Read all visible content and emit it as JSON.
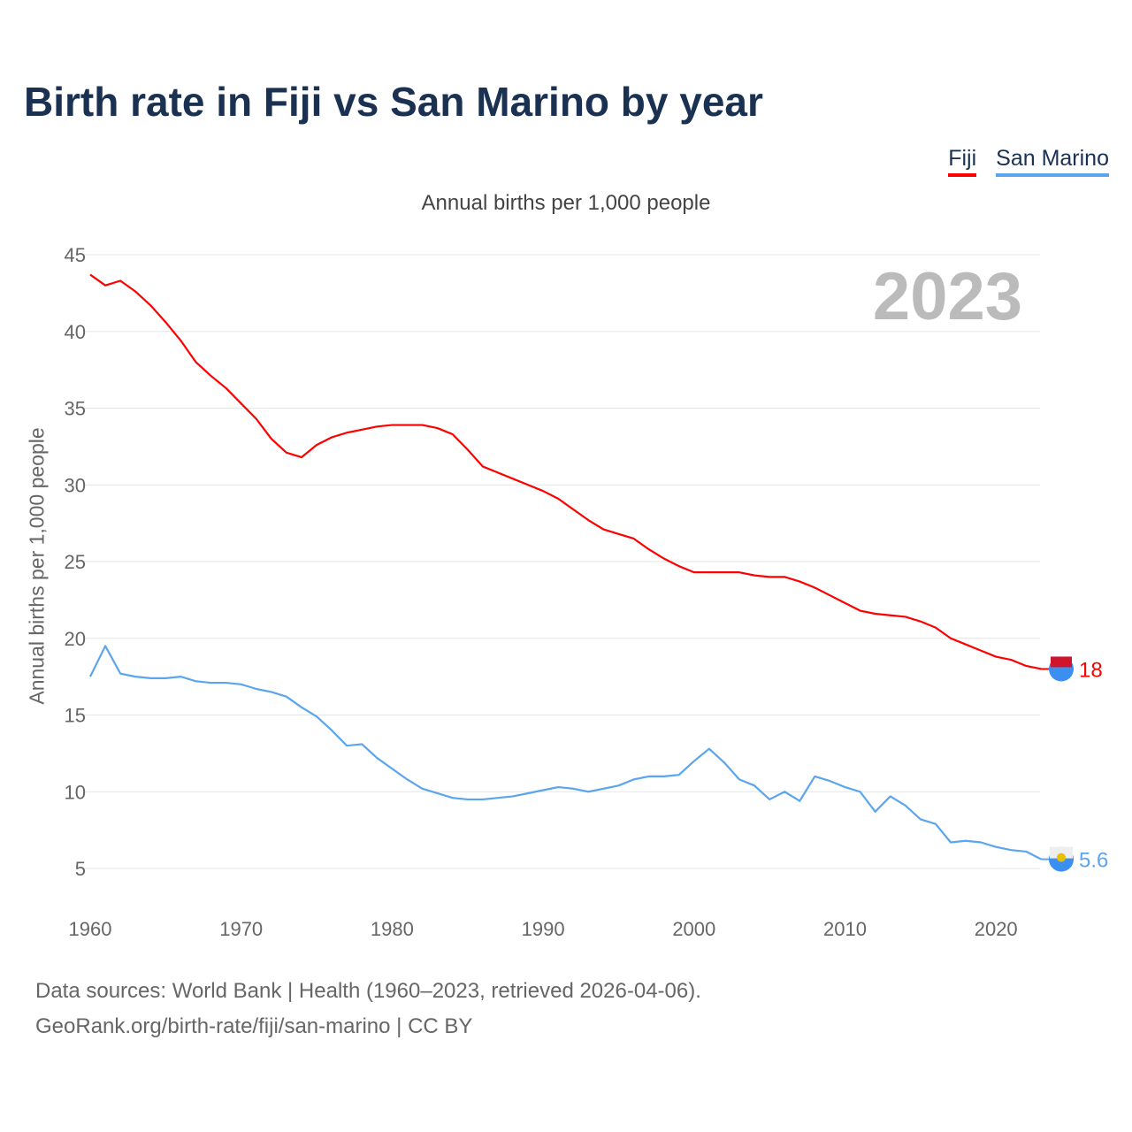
{
  "title": "Birth rate in Fiji vs San Marino by year",
  "footer": {
    "line1": "Data sources: World Bank | Health (1960–2023, retrieved 2026-04-06).",
    "line2": "GeoRank.org/birth-rate/fiji/san-marino | CC BY"
  },
  "chart_data": {
    "type": "line",
    "title": "Birth rate in Fiji vs San Marino by year",
    "subtitle": "Annual births per 1,000 people",
    "ylabel": "Annual births per 1,000 people",
    "xlabel": "",
    "current_year_label": "2023",
    "ylim": [
      2,
      45
    ],
    "xlim": [
      1960,
      2023
    ],
    "yticks": [
      5,
      10,
      15,
      20,
      25,
      30,
      35,
      40,
      45
    ],
    "xticks": [
      1960,
      1970,
      1980,
      1990,
      2000,
      2010,
      2020
    ],
    "grid": true,
    "legend_placement": "top-right",
    "x_start": 1960,
    "series": [
      {
        "name": "Fiji",
        "color": "#ff0000",
        "end_label": "18",
        "icon": "fiji-flag-icon",
        "values": [
          43.7,
          43.0,
          43.3,
          42.6,
          41.7,
          40.6,
          39.4,
          38.0,
          37.1,
          36.3,
          35.3,
          34.3,
          33.0,
          32.1,
          31.8,
          32.6,
          33.1,
          33.4,
          33.6,
          33.8,
          33.9,
          33.9,
          33.9,
          33.7,
          33.3,
          32.3,
          31.2,
          30.8,
          30.4,
          30.0,
          29.6,
          29.1,
          28.4,
          27.7,
          27.1,
          26.8,
          26.5,
          25.8,
          25.2,
          24.7,
          24.3,
          24.3,
          24.3,
          24.3,
          24.1,
          24.0,
          24.0,
          23.7,
          23.3,
          22.8,
          22.3,
          21.8,
          21.6,
          21.5,
          21.4,
          21.1,
          20.7,
          20.0,
          19.6,
          19.2,
          18.8,
          18.6,
          18.2,
          18.0
        ]
      },
      {
        "name": "San Marino",
        "color": "#5aa5ee",
        "end_label": "5.6",
        "icon": "san-marino-flag-icon",
        "values": [
          17.5,
          19.5,
          17.7,
          17.5,
          17.4,
          17.4,
          17.5,
          17.2,
          17.1,
          17.1,
          17.0,
          16.7,
          16.5,
          16.2,
          15.5,
          14.9,
          14.0,
          13.0,
          13.1,
          12.2,
          11.5,
          10.8,
          10.2,
          9.9,
          9.6,
          9.5,
          9.5,
          9.6,
          9.7,
          9.9,
          10.1,
          10.3,
          10.2,
          10.0,
          10.2,
          10.4,
          10.8,
          11.0,
          11.0,
          11.1,
          12.0,
          12.8,
          11.9,
          10.8,
          10.4,
          9.5,
          10.0,
          9.4,
          11.0,
          10.7,
          10.3,
          10.0,
          8.7,
          9.7,
          9.1,
          8.2,
          7.9,
          6.7,
          6.8,
          6.7,
          6.4,
          6.2,
          6.1,
          5.6
        ]
      }
    ]
  }
}
